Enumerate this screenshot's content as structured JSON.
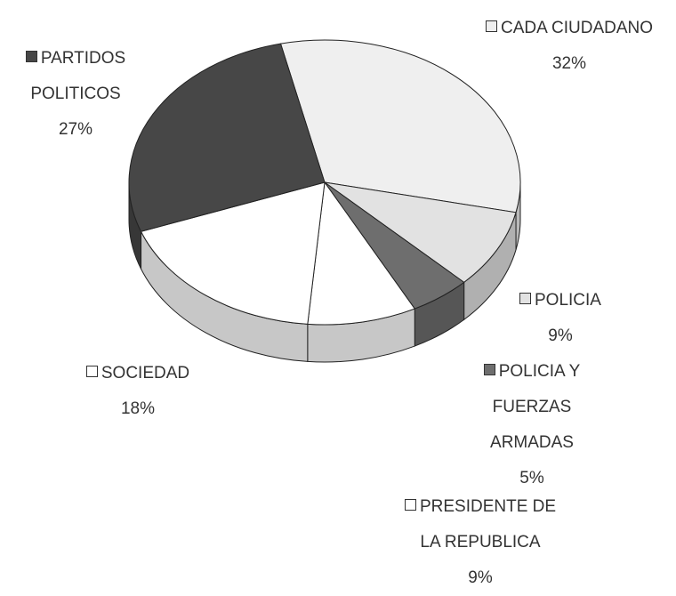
{
  "chart_data": {
    "type": "pie",
    "three_d": true,
    "categories": [
      "CADA CIUDADANO",
      "POLICIA",
      "POLICIA Y FUERZAS ARMADAS",
      "PRESIDENTE DE LA REPUBLICA",
      "SOCIEDAD",
      "PARTIDOS POLITICOS"
    ],
    "values": [
      32,
      9,
      5,
      9,
      18,
      27
    ],
    "value_labels": [
      "32%",
      "9%",
      "5%",
      "9%",
      "18%",
      "27%"
    ],
    "colors": [
      "#efefef",
      "#e2e2e2",
      "#6e6e6e",
      "#ffffff",
      "#ffffff",
      "#474747"
    ]
  }
}
